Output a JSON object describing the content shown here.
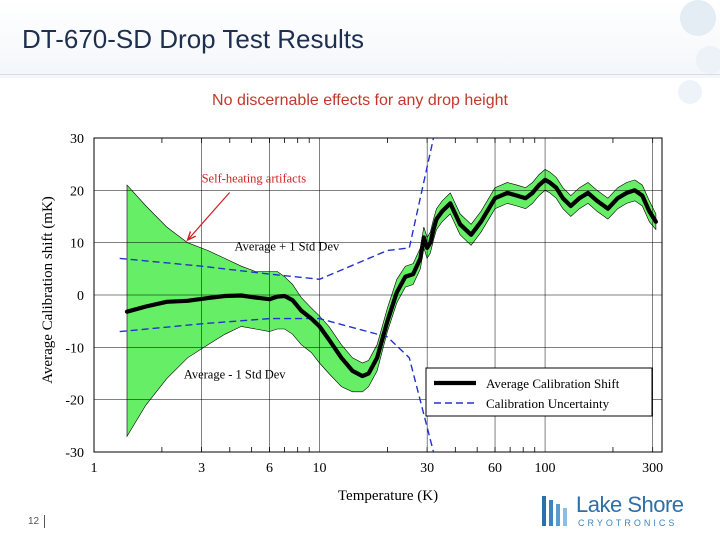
{
  "slide": {
    "title": "DT-670-SD Drop Test Results",
    "subtitle": "No discernable effects for any drop height",
    "page_number": "12"
  },
  "logo": {
    "name": "Lake Shore",
    "tagline": "CRYOTRONICS"
  },
  "colors": {
    "band_fill": "#66ee66",
    "average_line": "#000000",
    "uncertainty_line": "#2233cc",
    "annotation_arrow": "#cc2222",
    "annotation_text": "#cc2222",
    "title": "#1f2f4f",
    "subtitle": "#c0392b"
  },
  "chart_data": {
    "type": "line",
    "xlabel": "Temperature (K)",
    "ylabel": "Average Calibration shift (mK)",
    "xscale": "log",
    "xlim": [
      1,
      330
    ],
    "ylim": [
      -30,
      30
    ],
    "x_ticks": [
      {
        "value": 1,
        "label": "1"
      },
      {
        "value": 3,
        "label": "3"
      },
      {
        "value": 6,
        "label": "6"
      },
      {
        "value": 10,
        "label": "10"
      },
      {
        "value": 30,
        "label": "30"
      },
      {
        "value": 60,
        "label": "60"
      },
      {
        "value": 100,
        "label": "100"
      },
      {
        "value": 300,
        "label": "300"
      }
    ],
    "y_ticks": [
      {
        "value": 30,
        "label": "30"
      },
      {
        "value": 20,
        "label": "20"
      },
      {
        "value": 10,
        "label": "10"
      },
      {
        "value": 0,
        "label": "0"
      },
      {
        "value": -10,
        "label": "-10"
      },
      {
        "value": -20,
        "label": "-20"
      },
      {
        "value": -30,
        "label": "-30"
      }
    ],
    "grid": true,
    "legend_position": "bottom-right",
    "series": [
      {
        "name": "Average Calibration Shift",
        "style": "solid-thick",
        "x": [
          1.4,
          1.7,
          2.1,
          2.6,
          3.2,
          3.8,
          4.5,
          5.2,
          6.0,
          6.5,
          7.0,
          7.6,
          8.3,
          9.2,
          10.0,
          11.0,
          12.5,
          14.0,
          15.5,
          16.5,
          18.0,
          20.0,
          22.0,
          24.0,
          26.0,
          28.0,
          29.0,
          30.0,
          31.0,
          32.0,
          33.0,
          35.0,
          38.0,
          42.0,
          47.0,
          52.0,
          60.0,
          68.0,
          75.0,
          82.0,
          88.0,
          94.0,
          100.0,
          105.0,
          112.0,
          120.0,
          130.0,
          142.0,
          155.0,
          170.0,
          190.0,
          210.0,
          230.0,
          250.0,
          270.0,
          290.0,
          310.0
        ],
        "y": [
          -3.2,
          -2.2,
          -1.3,
          -1.1,
          -0.6,
          -0.2,
          -0.1,
          -0.5,
          -0.8,
          -0.3,
          -0.2,
          -1.0,
          -3.0,
          -4.5,
          -6.0,
          -8.5,
          -12.0,
          -14.5,
          -15.5,
          -15.0,
          -12.0,
          -5.0,
          0.5,
          3.5,
          4.0,
          7.0,
          11.0,
          9.0,
          10.0,
          12.5,
          14.5,
          16.0,
          17.5,
          13.5,
          11.5,
          14.0,
          18.5,
          19.5,
          19.0,
          18.5,
          19.5,
          21.0,
          22.0,
          21.5,
          20.5,
          18.5,
          17.0,
          18.5,
          19.5,
          18.0,
          16.5,
          18.5,
          19.5,
          20.0,
          19.0,
          16.0,
          14.0
        ]
      },
      {
        "name": "Average + 1 Std Dev",
        "style": "band-upper",
        "x": [
          1.4,
          1.7,
          2.1,
          2.6,
          3.2,
          3.8,
          4.5,
          5.2,
          6.0,
          6.5,
          7.0,
          7.6,
          8.3,
          9.2,
          10.0,
          11.0,
          12.5,
          14.0,
          15.5,
          16.5,
          18.0,
          20.0,
          22.0,
          24.0,
          26.0,
          28.0,
          29.0,
          30.0,
          31.0,
          32.0,
          33.0,
          35.0,
          38.0,
          42.0,
          47.0,
          52.0,
          60.0,
          68.0,
          75.0,
          82.0,
          88.0,
          94.0,
          100.0,
          105.0,
          112.0,
          120.0,
          130.0,
          142.0,
          155.0,
          170.0,
          190.0,
          210.0,
          230.0,
          250.0,
          270.0,
          290.0,
          310.0
        ],
        "y": [
          21.0,
          17.0,
          13.0,
          10.0,
          8.5,
          7.0,
          5.5,
          4.5,
          4.5,
          4.5,
          3.5,
          2.0,
          -0.5,
          -2.5,
          -4.0,
          -6.0,
          -9.5,
          -12.0,
          -13.0,
          -12.5,
          -9.5,
          -2.5,
          3.0,
          5.5,
          6.0,
          9.0,
          13.0,
          11.0,
          12.0,
          14.5,
          16.5,
          18.0,
          19.5,
          15.5,
          13.5,
          16.0,
          20.5,
          21.5,
          21.0,
          20.5,
          21.5,
          23.0,
          24.0,
          23.5,
          22.5,
          20.5,
          19.0,
          20.5,
          21.5,
          20.0,
          18.5,
          20.5,
          21.5,
          22.0,
          21.0,
          18.0,
          15.5
        ]
      },
      {
        "name": "Average - 1 Std Dev",
        "style": "band-lower",
        "x": [
          1.4,
          1.7,
          2.1,
          2.6,
          3.2,
          3.8,
          4.5,
          5.2,
          6.0,
          6.5,
          7.0,
          7.6,
          8.3,
          9.2,
          10.0,
          11.0,
          12.5,
          14.0,
          15.5,
          16.5,
          18.0,
          20.0,
          22.0,
          24.0,
          26.0,
          28.0,
          29.0,
          30.0,
          31.0,
          32.0,
          33.0,
          35.0,
          38.0,
          42.0,
          47.0,
          52.0,
          60.0,
          68.0,
          75.0,
          82.0,
          88.0,
          94.0,
          100.0,
          105.0,
          112.0,
          120.0,
          130.0,
          142.0,
          155.0,
          170.0,
          190.0,
          210.0,
          230.0,
          250.0,
          270.0,
          290.0,
          310.0
        ],
        "y": [
          -27.0,
          -21.0,
          -16.0,
          -12.0,
          -9.5,
          -7.5,
          -6.0,
          -6.5,
          -7.0,
          -6.5,
          -6.5,
          -7.5,
          -9.5,
          -11.0,
          -13.0,
          -15.0,
          -17.5,
          -18.5,
          -18.5,
          -17.5,
          -14.5,
          -7.0,
          -1.5,
          1.5,
          2.0,
          5.0,
          9.0,
          7.0,
          8.0,
          10.5,
          12.5,
          14.0,
          15.5,
          11.5,
          9.5,
          12.0,
          16.5,
          17.5,
          17.0,
          16.5,
          17.5,
          19.0,
          20.0,
          19.5,
          18.5,
          16.5,
          15.0,
          16.5,
          17.5,
          16.0,
          14.5,
          16.5,
          17.5,
          18.0,
          17.0,
          14.0,
          12.5
        ]
      },
      {
        "name": "Calibration Uncertainty",
        "style": "dashed",
        "x": [
          1.3,
          3.0,
          6.0,
          10.0,
          20.0,
          25.0,
          32.0
        ],
        "y": [
          7.0,
          5.5,
          4.0,
          3.0,
          8.5,
          9.0,
          30.0
        ]
      },
      {
        "name": "Calibration Uncertainty (lower)",
        "style": "dashed",
        "x": [
          1.3,
          3.0,
          6.0,
          10.0,
          20.0,
          25.0,
          32.0
        ],
        "y": [
          -7.0,
          -5.5,
          -4.5,
          -4.5,
          -8.0,
          -12.0,
          -30.0
        ]
      }
    ],
    "annotations": [
      {
        "text": "Self-heating artifacts",
        "x": 3.0,
        "y": 21.5,
        "arrow_to": [
          2.6,
          10.5
        ]
      },
      {
        "text": "Average + 1 Std Dev",
        "x": 4.2,
        "y": 8.5
      },
      {
        "text": "Average - 1 Std Dev",
        "x": 2.5,
        "y": -16.0
      }
    ],
    "legend": [
      {
        "label": "Average Calibration Shift",
        "style": "solid-thick"
      },
      {
        "label": "Calibration Uncertainty",
        "style": "dashed"
      }
    ]
  }
}
